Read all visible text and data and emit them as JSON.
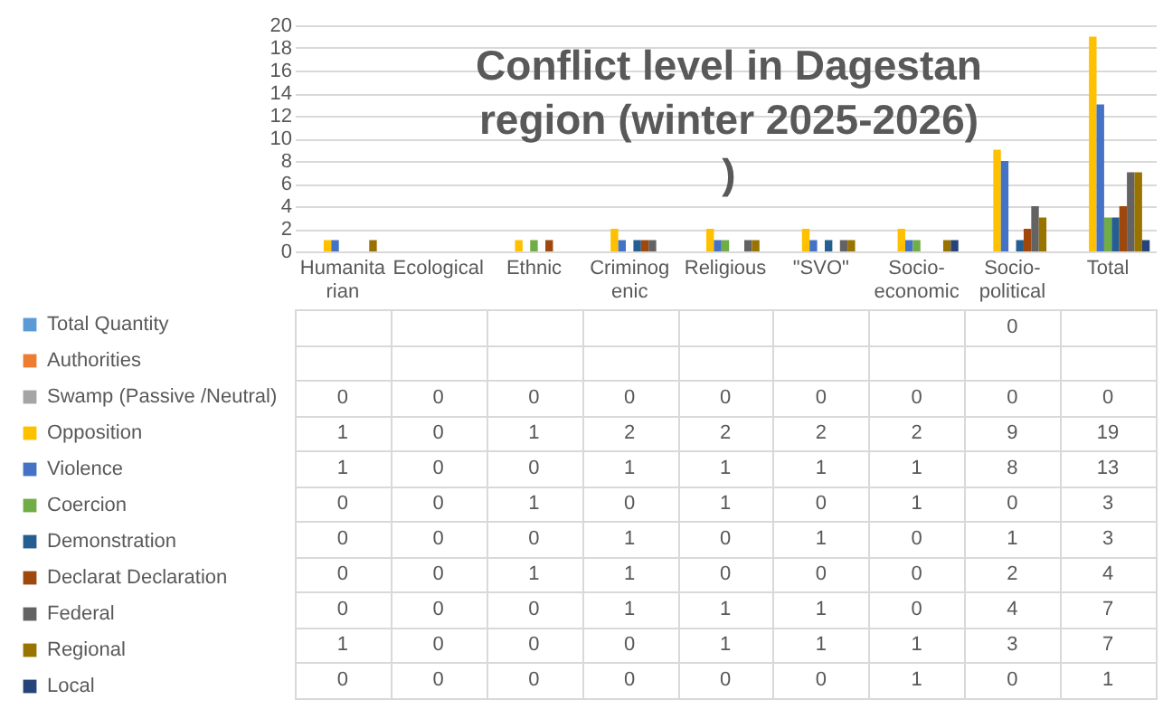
{
  "chart_data": {
    "type": "bar",
    "title": "Conflict level in Dagestan region (winter 2025-2026) )",
    "categories": [
      "Humanitarian",
      "Ecological",
      "Ethnic",
      "Criminogenic",
      "Religious",
      "\"SVO\"",
      "Socio-economic",
      "Socio-political",
      "Total"
    ],
    "series": [
      {
        "name": "Total Quantity",
        "color": "#5b9bd5",
        "values": [
          null,
          null,
          null,
          null,
          null,
          null,
          null,
          0,
          null
        ]
      },
      {
        "name": "Authorities",
        "color": "#ed7d31",
        "values": [
          null,
          null,
          null,
          null,
          null,
          null,
          null,
          null,
          null
        ]
      },
      {
        "name": "Swamp (Passive /Neutral)",
        "color": "#a5a5a5",
        "values": [
          0,
          0,
          0,
          0,
          0,
          0,
          0,
          0,
          0
        ]
      },
      {
        "name": "Opposition",
        "color": "#ffc000",
        "values": [
          1,
          0,
          1,
          2,
          2,
          2,
          2,
          9,
          19
        ]
      },
      {
        "name": "Violence",
        "color": "#4472c4",
        "values": [
          1,
          0,
          0,
          1,
          1,
          1,
          1,
          8,
          13
        ]
      },
      {
        "name": "Coercion",
        "color": "#70ad47",
        "values": [
          0,
          0,
          1,
          0,
          1,
          0,
          1,
          0,
          3
        ]
      },
      {
        "name": "Demonstration",
        "color": "#255e91",
        "values": [
          0,
          0,
          0,
          1,
          0,
          1,
          0,
          1,
          3
        ]
      },
      {
        "name": "Declarat Declaration",
        "color": "#9e480e",
        "values": [
          0,
          0,
          1,
          1,
          0,
          0,
          0,
          2,
          4
        ]
      },
      {
        "name": "Federal",
        "color": "#636363",
        "values": [
          0,
          0,
          0,
          1,
          1,
          1,
          0,
          4,
          7
        ]
      },
      {
        "name": "Regional",
        "color": "#997300",
        "values": [
          1,
          0,
          0,
          0,
          1,
          1,
          1,
          3,
          7
        ]
      },
      {
        "name": "Local",
        "color": "#264478",
        "values": [
          0,
          0,
          0,
          0,
          0,
          0,
          1,
          0,
          1
        ]
      }
    ],
    "ylim": [
      0,
      20
    ],
    "yticks": [
      0,
      2,
      4,
      6,
      8,
      10,
      12,
      14,
      16,
      18,
      20
    ],
    "grid": "y",
    "legend": "bottom left",
    "data_labels": true
  }
}
